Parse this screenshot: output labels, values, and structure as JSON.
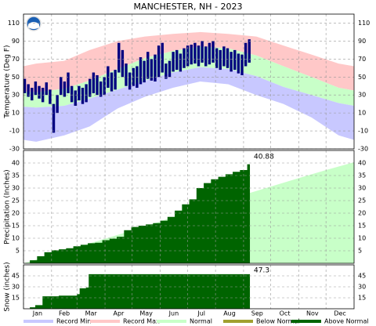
{
  "chart_data": [
    {
      "type": "range",
      "title": "MANCHESTER, NH - 2023",
      "ylabel": "Temperature (Deg F)",
      "ylim": [
        -30,
        120
      ],
      "yticks": [
        -30,
        -10,
        10,
        30,
        50,
        70,
        90,
        110
      ],
      "grid": true,
      "legend": [
        {
          "name": "Record Min",
          "color": "#c8c8ff"
        },
        {
          "name": "Record Max",
          "color": "#ffc8c8"
        },
        {
          "name": "Normal",
          "color": "#c8ffc8"
        },
        {
          "name": "Below Normal",
          "color": "#a0a030"
        },
        {
          "name": "Above Normal",
          "color": "#006400"
        }
      ],
      "climate_x": [
        1,
        15,
        46,
        74,
        105,
        135,
        166,
        196,
        227,
        258,
        288,
        319,
        349,
        366
      ],
      "record_max": {
        "color": "#ffc8c8",
        "values": [
          62,
          65,
          68,
          80,
          90,
          95,
          98,
          100,
          98,
          95,
          85,
          75,
          65,
          62
        ]
      },
      "normal": {
        "color": "#c8ffc8",
        "high": [
          34,
          33,
          37,
          46,
          59,
          71,
          79,
          84,
          82,
          74,
          62,
          50,
          38,
          35
        ],
        "low": [
          17,
          16,
          18,
          26,
          36,
          46,
          55,
          61,
          59,
          51,
          39,
          30,
          21,
          18
        ]
      },
      "record_min": {
        "color": "#c8c8ff",
        "values": [
          -20,
          -22,
          -15,
          -5,
          15,
          28,
          38,
          45,
          42,
          30,
          20,
          5,
          -15,
          -20
        ]
      },
      "observed": {
        "color": "#000080",
        "x": [
          1,
          5,
          9,
          13,
          17,
          21,
          25,
          29,
          33,
          37,
          41,
          45,
          49,
          53,
          57,
          61,
          65,
          69,
          73,
          77,
          81,
          85,
          89,
          93,
          97,
          101,
          105,
          109,
          113,
          117,
          121,
          125,
          129,
          133,
          137,
          141,
          145,
          149,
          153,
          157,
          161,
          165,
          169,
          173,
          177,
          181,
          185,
          189,
          193,
          197,
          201,
          205,
          209,
          213,
          217,
          221,
          225,
          229,
          233,
          237,
          241,
          245,
          249
        ],
        "high": [
          48,
          42,
          38,
          45,
          40,
          38,
          44,
          36,
          20,
          30,
          50,
          45,
          55,
          40,
          35,
          40,
          38,
          42,
          48,
          55,
          52,
          45,
          50,
          62,
          55,
          58,
          88,
          80,
          65,
          55,
          60,
          62,
          72,
          68,
          78,
          70,
          75,
          85,
          88,
          65,
          68,
          78,
          80,
          76,
          82,
          85,
          86,
          88,
          85,
          90,
          84,
          88,
          90,
          82,
          80,
          84,
          82,
          78,
          80,
          76,
          75,
          88,
          92
        ],
        "low": [
          32,
          28,
          24,
          30,
          26,
          22,
          30,
          20,
          -12,
          10,
          30,
          28,
          32,
          22,
          18,
          24,
          20,
          22,
          28,
          32,
          30,
          28,
          30,
          38,
          34,
          36,
          55,
          50,
          40,
          36,
          40,
          38,
          42,
          44,
          48,
          46,
          45,
          50,
          55,
          48,
          50,
          56,
          58,
          56,
          60,
          62,
          64,
          65,
          62,
          66,
          62,
          64,
          66,
          60,
          58,
          62,
          60,
          56,
          58,
          54,
          52,
          62,
          66
        ]
      }
    },
    {
      "type": "cumulative",
      "ylabel": "Precipitation (Inches)",
      "ylim": [
        0,
        45
      ],
      "yticks": [
        5,
        10,
        15,
        20,
        25,
        30,
        35,
        40
      ],
      "grid": true,
      "normal": {
        "color": "#c8ffc8",
        "x": [
          1,
          32,
          60,
          91,
          121,
          152,
          182,
          213,
          244,
          274,
          305,
          335,
          366
        ],
        "values": [
          0,
          3.4,
          6.4,
          9.8,
          13.1,
          16.7,
          20.3,
          23.9,
          27.3,
          30.6,
          34.0,
          37.2,
          40.3
        ]
      },
      "observed": {
        "color": "#006400",
        "x": [
          1,
          8,
          16,
          24,
          32,
          40,
          48,
          56,
          64,
          72,
          80,
          88,
          96,
          104,
          112,
          120,
          128,
          136,
          144,
          152,
          160,
          168,
          176,
          184,
          192,
          200,
          208,
          216,
          224,
          232,
          240,
          248,
          251
        ],
        "values": [
          0,
          1.2,
          2.8,
          4.4,
          5.2,
          5.6,
          6.0,
          6.8,
          7.4,
          8.0,
          8.2,
          9.2,
          9.8,
          10.6,
          13.2,
          14.5,
          15.0,
          15.5,
          16.0,
          17.0,
          18.5,
          21.0,
          23.5,
          25.5,
          30.0,
          32.0,
          33.5,
          34.5,
          35.5,
          36.5,
          37.2,
          39.5,
          40.88
        ]
      }
    },
    {
      "type": "cumulative",
      "ylabel": "Snow (inches)",
      "ylim": [
        0,
        60
      ],
      "yticks": [
        15,
        30,
        45
      ],
      "grid": true,
      "xlim": [
        1,
        366
      ],
      "xticks": [
        {
          "value": 1,
          "label": "Jan"
        },
        {
          "value": 32,
          "label": "Feb"
        },
        {
          "value": 60,
          "label": "Mar"
        },
        {
          "value": 91,
          "label": "Apr"
        },
        {
          "value": 121,
          "label": "May"
        },
        {
          "value": 152,
          "label": "Jun"
        },
        {
          "value": 182,
          "label": "Jul"
        },
        {
          "value": 213,
          "label": "Aug"
        },
        {
          "value": 244,
          "label": "Sep"
        },
        {
          "value": 274,
          "label": "Oct"
        },
        {
          "value": 305,
          "label": "Nov"
        },
        {
          "value": 335,
          "label": "Dec"
        }
      ],
      "observed": {
        "color": "#006400",
        "x": [
          1,
          8,
          14,
          22,
          40,
          60,
          63,
          70,
          73,
          251
        ],
        "values": [
          0,
          2,
          5,
          17,
          18,
          20,
          28,
          29,
          47.3,
          47.3
        ]
      }
    }
  ]
}
